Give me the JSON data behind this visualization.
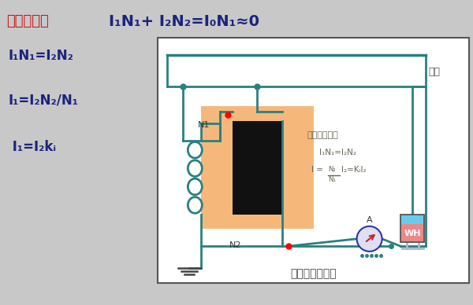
{
  "bg_color": "#c8c8c8",
  "title_label": "工作原理：",
  "title_color": "#cc1111",
  "formula_main": "I₁N₁+ I₂N₂=I₀N₁≈0",
  "formula_main_color": "#1a237e",
  "formulas_left": [
    "I₁N₁=I₂N₂",
    "I₁=I₂N₂/N₁",
    " I₁=I₂kᵢ"
  ],
  "formulas_left_color": "#1a237e",
  "teal": "#2a8080",
  "teal2": "#1a9090",
  "transformer_fill": "#f5b87a",
  "diagram_title": "电流互感器原理",
  "diagram_title_color": "#444444",
  "fuze_label": "负载",
  "n1_label": "N1",
  "n2_label": "N2",
  "a_label": "A",
  "wh_label": "WH",
  "bianliu_title": "变流比公式：",
  "bianliu_f1": "I₁N₁=I₂N₂",
  "bianliu_f2": "I =  N₂/N₁ I₂=KᵢI₂"
}
